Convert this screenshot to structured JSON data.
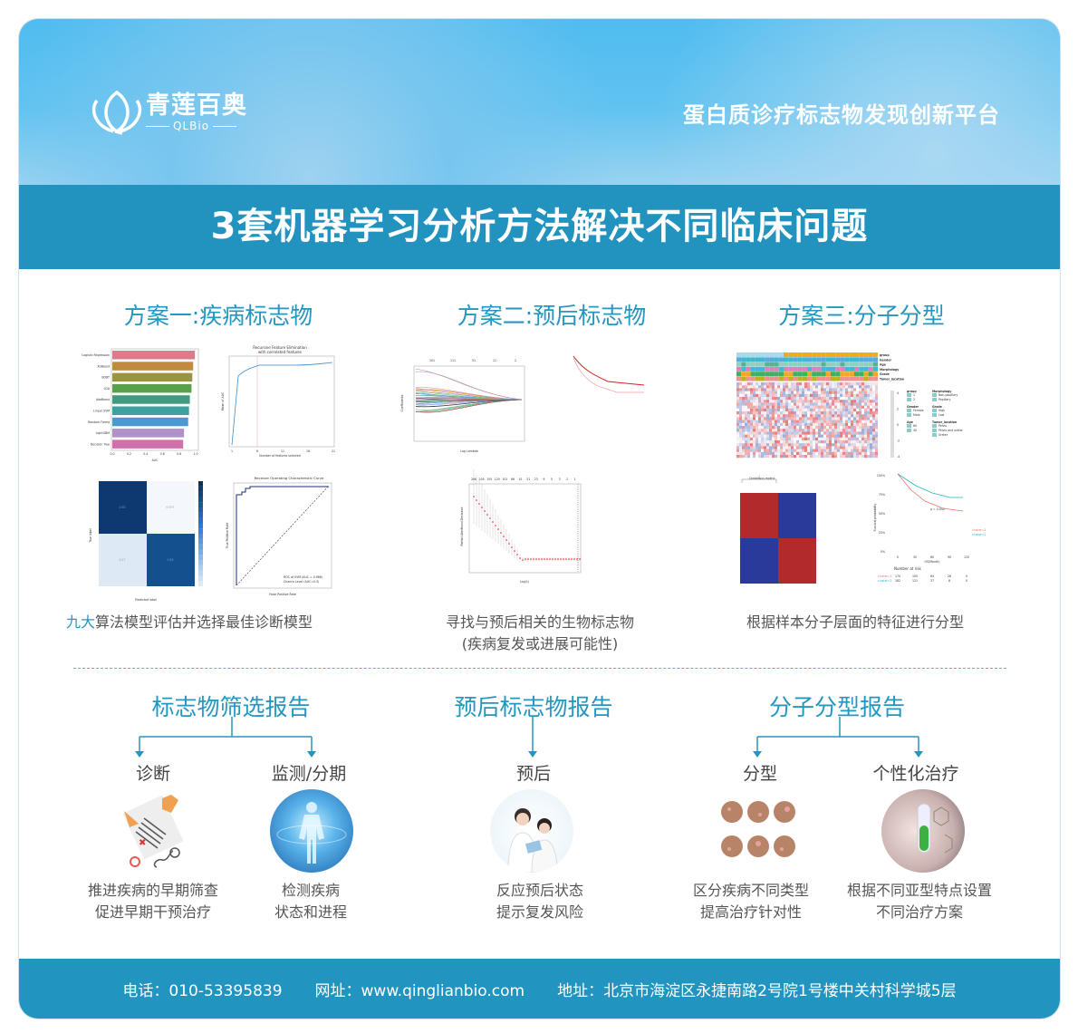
{
  "header": {
    "logo_cn": "青莲百奥",
    "logo_en": "QLBio",
    "slogan": "蛋白质诊疗标志物发现创新平台"
  },
  "banner": {
    "title": "3套机器学习分析方法解决不同临床问题"
  },
  "schemes": [
    {
      "title": "方案一:疾病标志物",
      "caption_highlight": "九大",
      "caption": "算法模型评估并选择最佳诊断模型"
    },
    {
      "title": "方案二:预后标志物",
      "caption": "寻找与预后相关的生物标志物",
      "caption2": "(疾病复发或进展可能性)"
    },
    {
      "title": "方案三:分子分型",
      "caption": "根据样本分子层面的特征进行分型"
    }
  ],
  "figures": {
    "auc_bar": {
      "type": "bar",
      "categories": [
        "Logistic Regression",
        "XGBoost",
        "GDBT",
        "LDA",
        "AdaBoost",
        "Linear SVM",
        "Random Forest",
        "LightGBM",
        "Decision Tree"
      ],
      "values": [
        0.99,
        0.97,
        0.96,
        0.95,
        0.93,
        0.92,
        0.91,
        0.86,
        0.85
      ],
      "colors": [
        "#e07a8a",
        "#c08a40",
        "#9a9440",
        "#5aa04a",
        "#3f9a80",
        "#3fa0a0",
        "#4a9ad0",
        "#b090c8",
        "#d070a8"
      ],
      "xlabel": "AUC",
      "xticks": [
        "0.0",
        "0.2",
        "0.4",
        "0.6",
        "0.8",
        "1.0"
      ]
    },
    "rfe": {
      "title": "Recursive Feature Elimination",
      "subtitle": "with correlated features",
      "xlabel": "Number of features selected",
      "ylabel": "Mean of AUC",
      "xticks": [
        "1",
        "6",
        "11",
        "16",
        "21"
      ]
    },
    "confusion": {
      "values": [
        [
          0.92,
          0.077
        ],
        [
          0.17,
          0.83
        ]
      ],
      "labels": [
        "0.92",
        "0.077",
        "0.17",
        "0.83"
      ],
      "xlabel": "Predicted label",
      "ylabel": "True label",
      "ticks": [
        "0",
        "1"
      ]
    },
    "roc": {
      "title": "Receiver Operating Characteristic Curve",
      "xlabel": "False Positive Rate",
      "ylabel": "True Positive Rate",
      "legend": [
        "ROC of SVM (AUC = 0.986)",
        "Chance Level (AUC=0.5)"
      ]
    },
    "lasso": {
      "xlabel": "Log Lambda",
      "ylabel": "Coefficients",
      "top": [
        "101",
        "111",
        "51",
        "11",
        "2"
      ]
    },
    "cv": {
      "xlabel": "Log(λ)",
      "ylabel": "Partial Likelihood Deviance",
      "top": [
        "266",
        "205",
        "155",
        "120",
        "101",
        "66",
        "51",
        "31",
        "23",
        "9",
        "5",
        "3",
        "2",
        "1"
      ]
    },
    "heatmap": {
      "annotations": [
        "group",
        "Gender",
        "Age",
        "Morphology",
        "Grade",
        "Tumor_location"
      ],
      "legend": {
        "group": [
          "1",
          "2"
        ],
        "Gender": [
          "Female",
          "Male"
        ],
        "Age": [
          "60",
          "40"
        ],
        "Morphology": [
          "Non-papillary",
          "Papillary"
        ],
        "Grade": [
          "High",
          "Low"
        ],
        "Tumor_location": [
          "Pelvis",
          "Pelvis and ureter",
          "Ureter"
        ]
      },
      "scale": [
        "4",
        "2",
        "0",
        "-2",
        "-4"
      ]
    },
    "consensus": {
      "title": "Consensus matrix"
    },
    "km": {
      "pvalue": "p = 0.042",
      "ylabel": "Survival probability",
      "xlabel": "OS(Month)",
      "yticks": [
        "100%",
        "75%",
        "50%",
        "25%",
        "0%"
      ],
      "xticks": [
        "0",
        "30",
        "60",
        "90",
        "120"
      ],
      "legend": [
        "cluster=1",
        "cluster=2"
      ],
      "risk_title": "Number at risk",
      "risk": [
        [
          "170",
          "105",
          "64",
          "26",
          "0"
        ],
        [
          "182",
          "121",
          "37",
          "8",
          "0"
        ]
      ],
      "colors": [
        "#f07070",
        "#20b8c0"
      ]
    }
  },
  "reports": [
    {
      "title": "标志物筛选报告",
      "items": [
        {
          "label": "诊断",
          "desc": [
            "推进疾病的早期筛查",
            "促进早期干预治疗"
          ]
        },
        {
          "label": "监测/分期",
          "desc": [
            "检测疾病",
            "状态和进程"
          ]
        }
      ]
    },
    {
      "title": "预后标志物报告",
      "items": [
        {
          "label": "预后",
          "desc": [
            "反应预后状态",
            "提示复发风险"
          ]
        }
      ]
    },
    {
      "title": "分子分型报告",
      "items": [
        {
          "label": "分型",
          "desc": [
            "区分疾病不同类型",
            "提高治疗针对性"
          ]
        },
        {
          "label": "个性化治疗",
          "desc": [
            "根据不同亚型特点设置",
            "不同治疗方案"
          ]
        }
      ]
    }
  ],
  "footer": {
    "phone": "电话：010-53395839",
    "website": "网址：www.qinglianbio.com",
    "address": "地址：北京市海淀区永捷南路2号院1号楼中关村科学城5层"
  },
  "colors": {
    "accent": "#2596c0",
    "banner": "#2293bf",
    "footer": "#2195bf"
  }
}
